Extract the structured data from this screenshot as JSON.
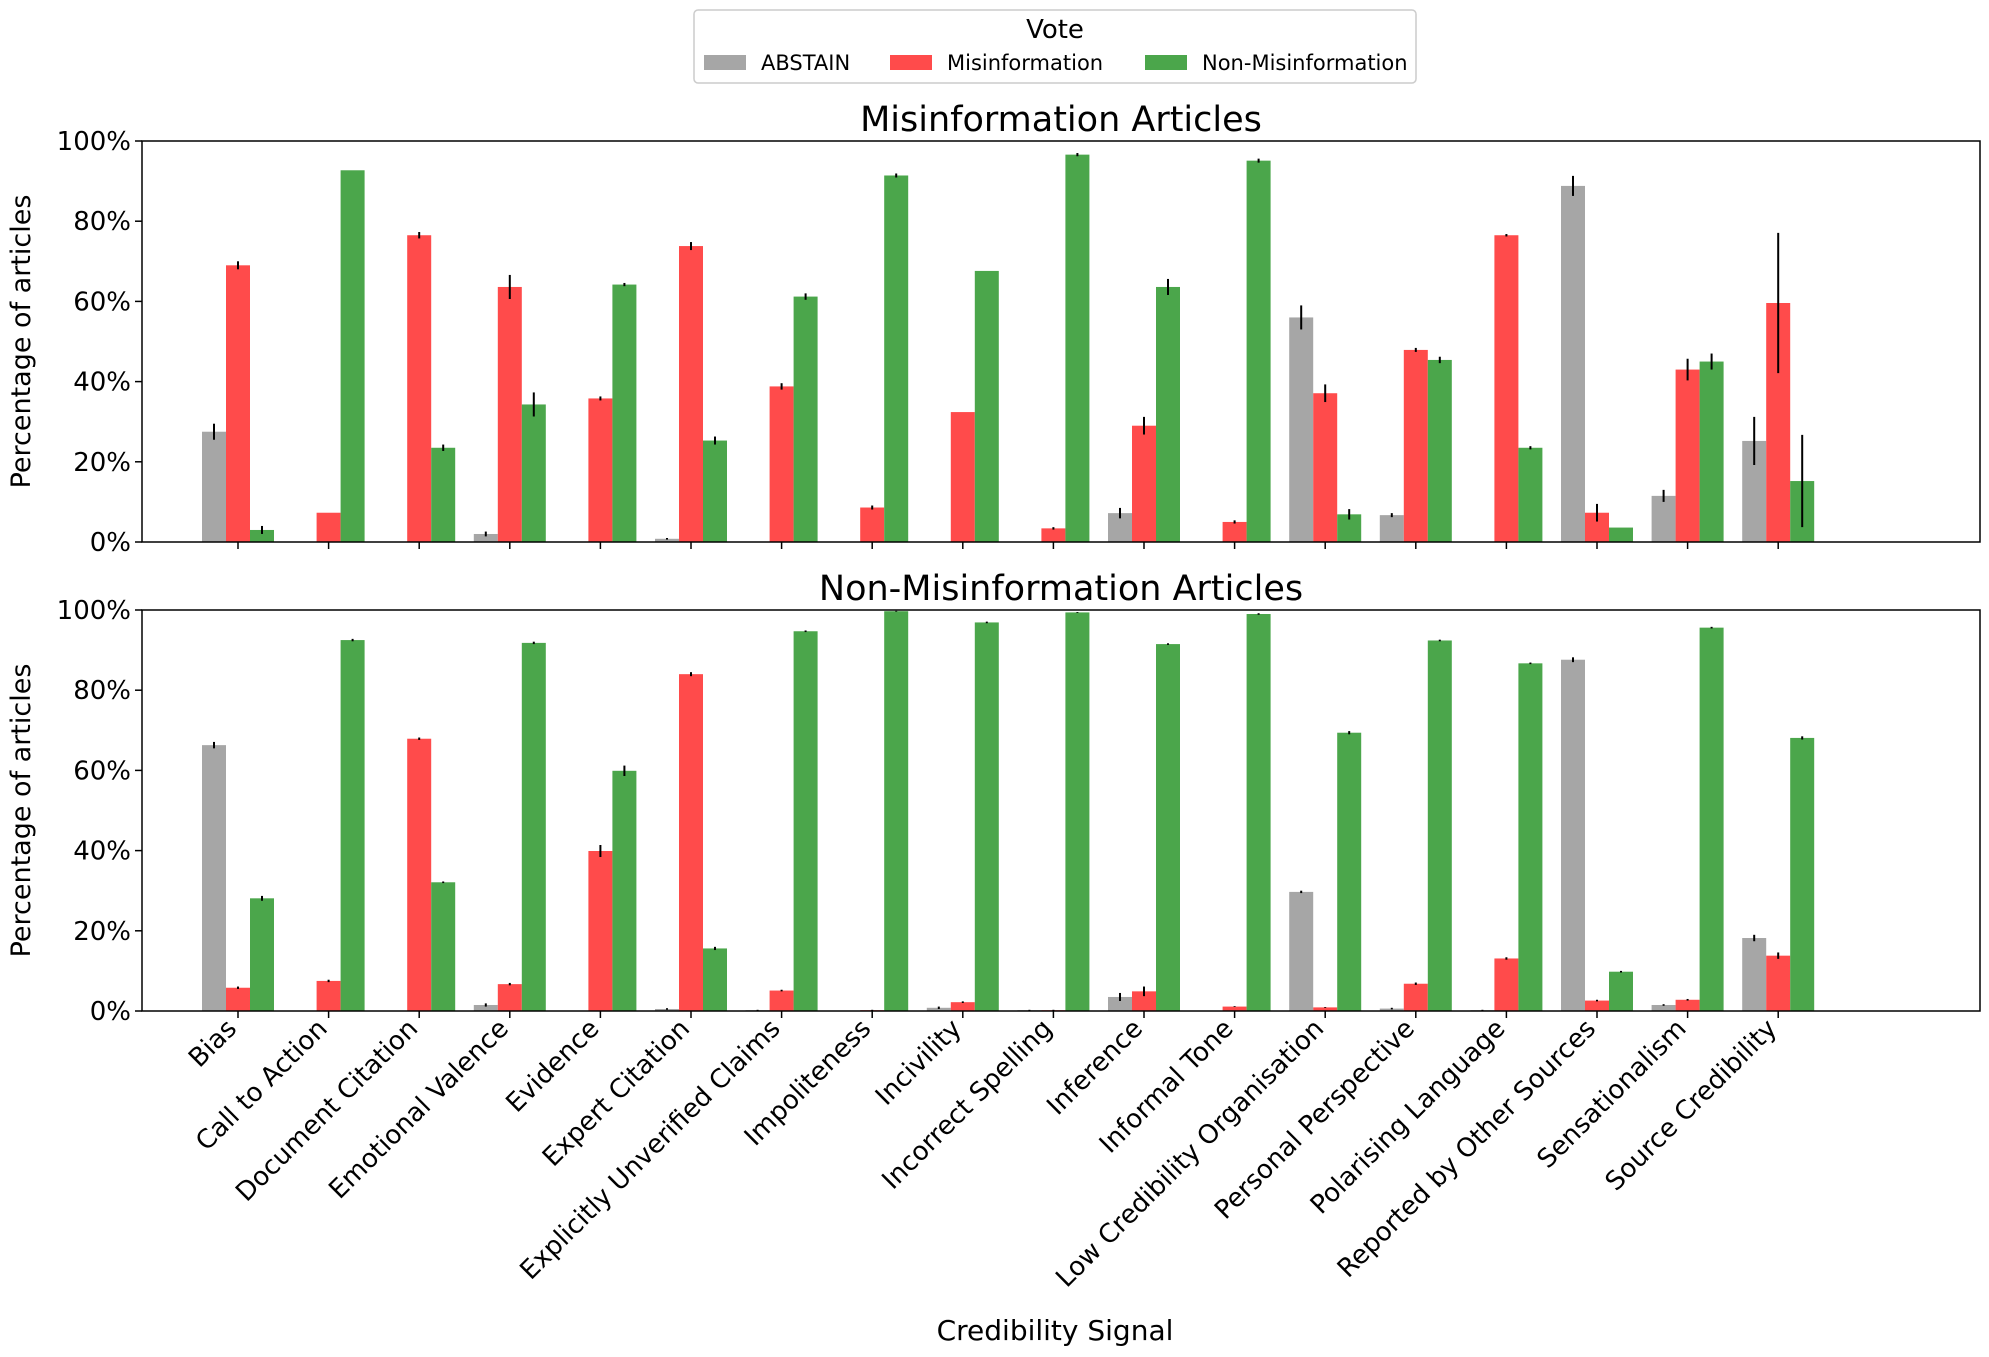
{
  "chart_data": {
    "type": "bar",
    "legend": {
      "title": "Vote",
      "placement": "top-center",
      "entries": [
        {
          "name": "ABSTAIN",
          "color": "#a6a6a6"
        },
        {
          "name": "Misinformation",
          "color": "#ff4b4b"
        },
        {
          "name": "Non-Misinformation",
          "color": "#4ba64b"
        }
      ]
    },
    "xlabel": "Credibility Signal",
    "categories": [
      "Bias",
      "Call to Action",
      "Document Citation",
      "Emotional Valence",
      "Evidence",
      "Expert Citation",
      "Explicitly Unverified Claims",
      "Impoliteness",
      "Incivility",
      "Incorrect Spelling",
      "Inference",
      "Informal Tone",
      "Low Credibility Organisation",
      "Personal Perspective",
      "Polarising Language",
      "Reported by Other Sources",
      "Sensationalism",
      "Source Credibility"
    ],
    "yticks": [
      "0%",
      "20%",
      "40%",
      "60%",
      "80%",
      "100%"
    ],
    "panels": [
      {
        "title": "Misinformation Articles",
        "ylabel": "Percentage of articles",
        "ylim": [
          0,
          100
        ],
        "series": [
          {
            "name": "ABSTAIN",
            "values": [
              27.5,
              0,
              0,
              2,
              0,
              0.8,
              0,
              0,
              0,
              0,
              7.2,
              0,
              56,
              6.7,
              0,
              88.8,
              11.5,
              25.2
            ],
            "errors": [
              2,
              0,
              0,
              0.6,
              0,
              0.2,
              0,
              0,
              0,
              0,
              1.3,
              0,
              3,
              0.5,
              0,
              2.5,
              1.5,
              6
            ]
          },
          {
            "name": "Misinformation",
            "values": [
              69,
              7.3,
              76.5,
              63.6,
              35.8,
              73.8,
              38.8,
              8.6,
              32.4,
              3.4,
              29,
              5,
              37.1,
              47.9,
              76.5,
              7.3,
              43,
              59.6
            ],
            "errors": [
              1,
              0,
              0.8,
              3,
              0.5,
              1,
              0.8,
              0.5,
              0,
              0.3,
              2.2,
              0.4,
              2.2,
              0.5,
              0.3,
              2.2,
              2.7,
              17.5
            ]
          },
          {
            "name": "Non-Misinformation",
            "values": [
              3,
              92.7,
              23.5,
              34.3,
              64.2,
              25.3,
              61.2,
              91.4,
              67.6,
              96.6,
              63.6,
              95.1,
              6.9,
              45.4,
              23.5,
              3.6,
              45,
              15.2
            ],
            "errors": [
              1,
              0,
              0.8,
              3,
              0.4,
              1,
              0.8,
              0.5,
              0,
              0.4,
              2,
              0.5,
              1.3,
              0.8,
              0.4,
              0,
              2,
              11.5
            ]
          }
        ]
      },
      {
        "title": "Non-Misinformation Articles",
        "ylabel": "Percentage of articles",
        "ylim": [
          0,
          100
        ],
        "series": [
          {
            "name": "ABSTAIN",
            "values": [
              66.3,
              0,
              0,
              1.5,
              0,
              0.5,
              0.2,
              0,
              0.8,
              0.2,
              3.5,
              0,
              29.7,
              0.6,
              0.2,
              87.6,
              1.5,
              18.2
            ],
            "errors": [
              0.8,
              0,
              0,
              0.4,
              0,
              0.2,
              0.1,
              0,
              0.3,
              0.1,
              1,
              0,
              0.3,
              0.2,
              0.1,
              0.6,
              0.2,
              0.8
            ]
          },
          {
            "name": "Misinformation",
            "values": [
              5.8,
              7.5,
              67.9,
              6.7,
              39.9,
              84,
              5.1,
              0.2,
              2.2,
              0.2,
              4.9,
              1.1,
              0.9,
              6.8,
              13.1,
              2.6,
              2.8,
              13.8
            ],
            "errors": [
              0.3,
              0.3,
              0.3,
              0.3,
              1.5,
              0.5,
              0.2,
              0.1,
              0.2,
              0.1,
              1.2,
              0.1,
              0.1,
              0.3,
              0.3,
              0.2,
              0.2,
              0.8
            ]
          },
          {
            "name": "Non-Misinformation",
            "values": [
              28.1,
              92.5,
              32.1,
              91.8,
              59.9,
              15.6,
              94.7,
              99.7,
              96.9,
              99.4,
              91.5,
              99,
              69.4,
              92.4,
              86.7,
              9.8,
              95.6,
              68.1
            ],
            "errors": [
              0.6,
              0.3,
              0.2,
              0.3,
              1.3,
              0.4,
              0.2,
              0.1,
              0.2,
              0.1,
              0.2,
              0.2,
              0.4,
              0.2,
              0.2,
              0.2,
              0.2,
              0.4
            ]
          }
        ]
      }
    ]
  }
}
